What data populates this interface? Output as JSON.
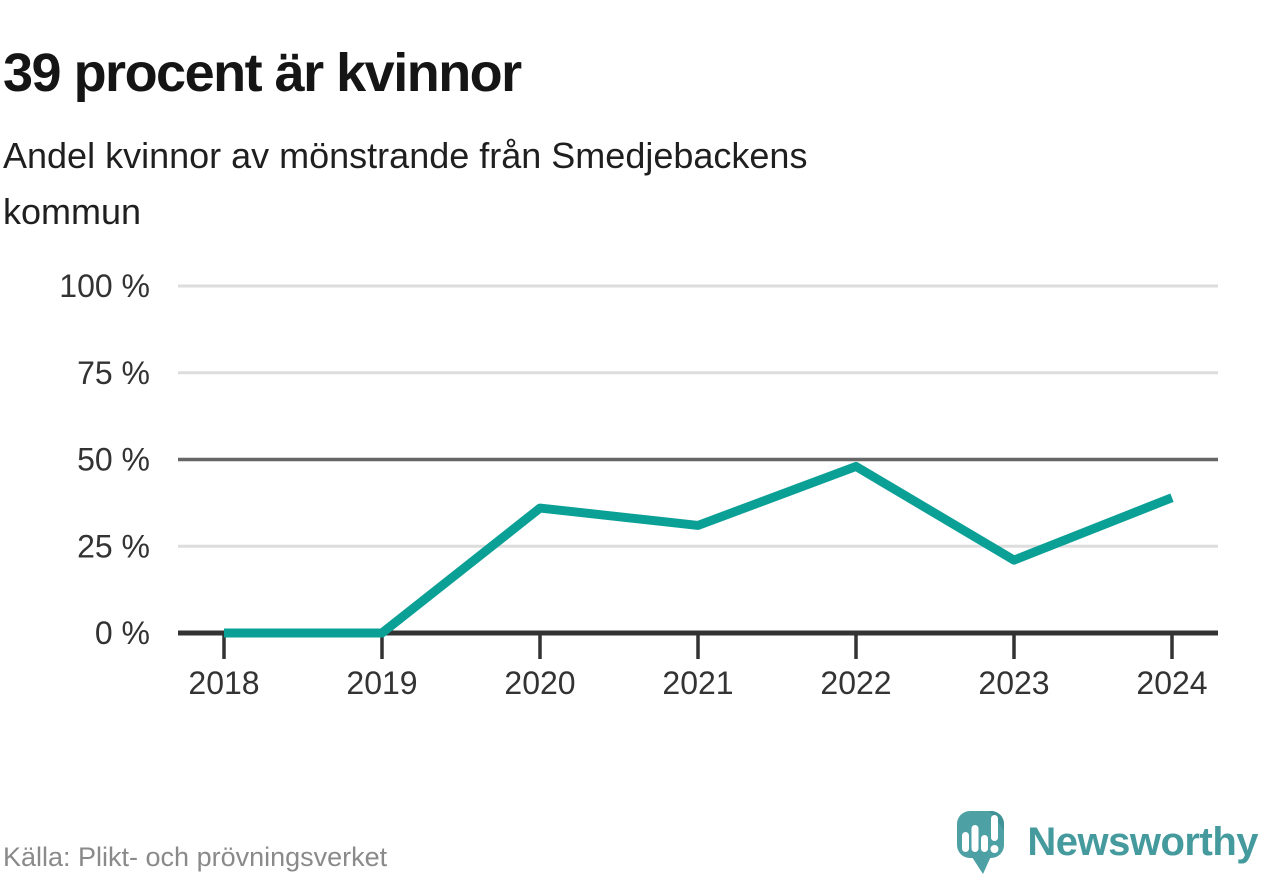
{
  "header": {
    "title": "39 procent är kvinnor",
    "subtitle": "Andel kvinnor av mönstrande från Smedjebackens kommun"
  },
  "chart_data": {
    "type": "line",
    "title": "39 procent är kvinnor",
    "subtitle": "Andel kvinnor av mönstrande från Smedjebackens kommun",
    "x": [
      2018,
      2019,
      2020,
      2021,
      2022,
      2023,
      2024
    ],
    "series": [
      {
        "name": "Andel kvinnor av mönstrande",
        "values": [
          0,
          0,
          36,
          31,
          48,
          21,
          39
        ]
      }
    ],
    "unit": "%",
    "ylim": [
      0,
      100
    ],
    "yticks": [
      {
        "value": 0,
        "label": "0 %"
      },
      {
        "value": 25,
        "label": "25 %"
      },
      {
        "value": 50,
        "label": "50 %"
      },
      {
        "value": 75,
        "label": "75 %"
      },
      {
        "value": 100,
        "label": "100 %"
      }
    ],
    "xtick_labels": [
      "2018",
      "2019",
      "2020",
      "2021",
      "2022",
      "2023",
      "2024"
    ],
    "grid": true,
    "emphasized_gridline_value": 50,
    "legend_position": "none",
    "colors": {
      "line": "#0aa096",
      "axis": "#333333",
      "gridline": "#dddddd",
      "emphasized_gridline": "#666666",
      "tick_label": "#333333"
    }
  },
  "footer": {
    "source": "Källa: Plikt- och prövningsverket",
    "brand": "Newsworthy",
    "brand_color": "#449a9d",
    "logo": {
      "bubble_color": "#4da0a3",
      "bubble_fold_color": "#3f9296",
      "glyph_color": "#ffffff",
      "icon_name": "newsworthy-speech-bubble-barchart-icon"
    }
  }
}
